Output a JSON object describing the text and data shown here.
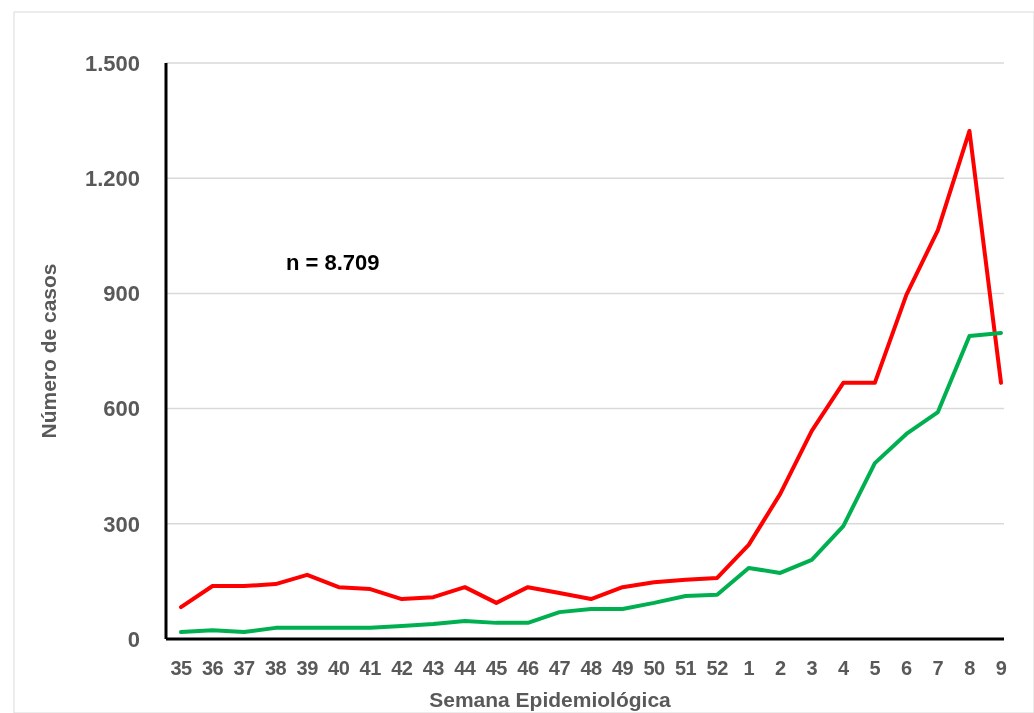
{
  "chart_data": {
    "type": "line",
    "xlabel": "Semana Epidemiológica",
    "ylabel": "Número de casos",
    "annotations": [
      "n = 8.709"
    ],
    "categories": [
      "35",
      "36",
      "37",
      "38",
      "39",
      "40",
      "41",
      "42",
      "43",
      "44",
      "45",
      "46",
      "47",
      "48",
      "49",
      "50",
      "51",
      "52",
      "1",
      "2",
      "3",
      "4",
      "5",
      "6",
      "7",
      "8",
      "9"
    ],
    "series": [
      {
        "color": "#ff0000",
        "values": [
          83,
          138,
          138,
          143,
          167,
          135,
          130,
          104,
          109,
          135,
          94,
          135,
          120,
          104,
          135,
          148,
          154,
          159,
          245,
          378,
          542,
          667,
          667,
          896,
          1065,
          1323,
          667
        ]
      },
      {
        "color": "#00b050",
        "values": [
          18,
          23,
          18,
          29,
          29,
          29,
          29,
          34,
          39,
          47,
          42,
          42,
          70,
          78,
          78,
          94,
          112,
          115,
          185,
          172,
          206,
          294,
          458,
          534,
          591,
          789,
          797
        ]
      }
    ],
    "ylim": [
      0,
      1500
    ],
    "yticks": [
      {
        "value": 0,
        "label": "0"
      },
      {
        "value": 300,
        "label": "300"
      },
      {
        "value": 600,
        "label": "600"
      },
      {
        "value": 900,
        "label": "900"
      },
      {
        "value": 1200,
        "label": "1.200"
      },
      {
        "value": 1500,
        "label": "1.500"
      }
    ],
    "grid": "y",
    "marker": "none",
    "line_style": "solid"
  }
}
